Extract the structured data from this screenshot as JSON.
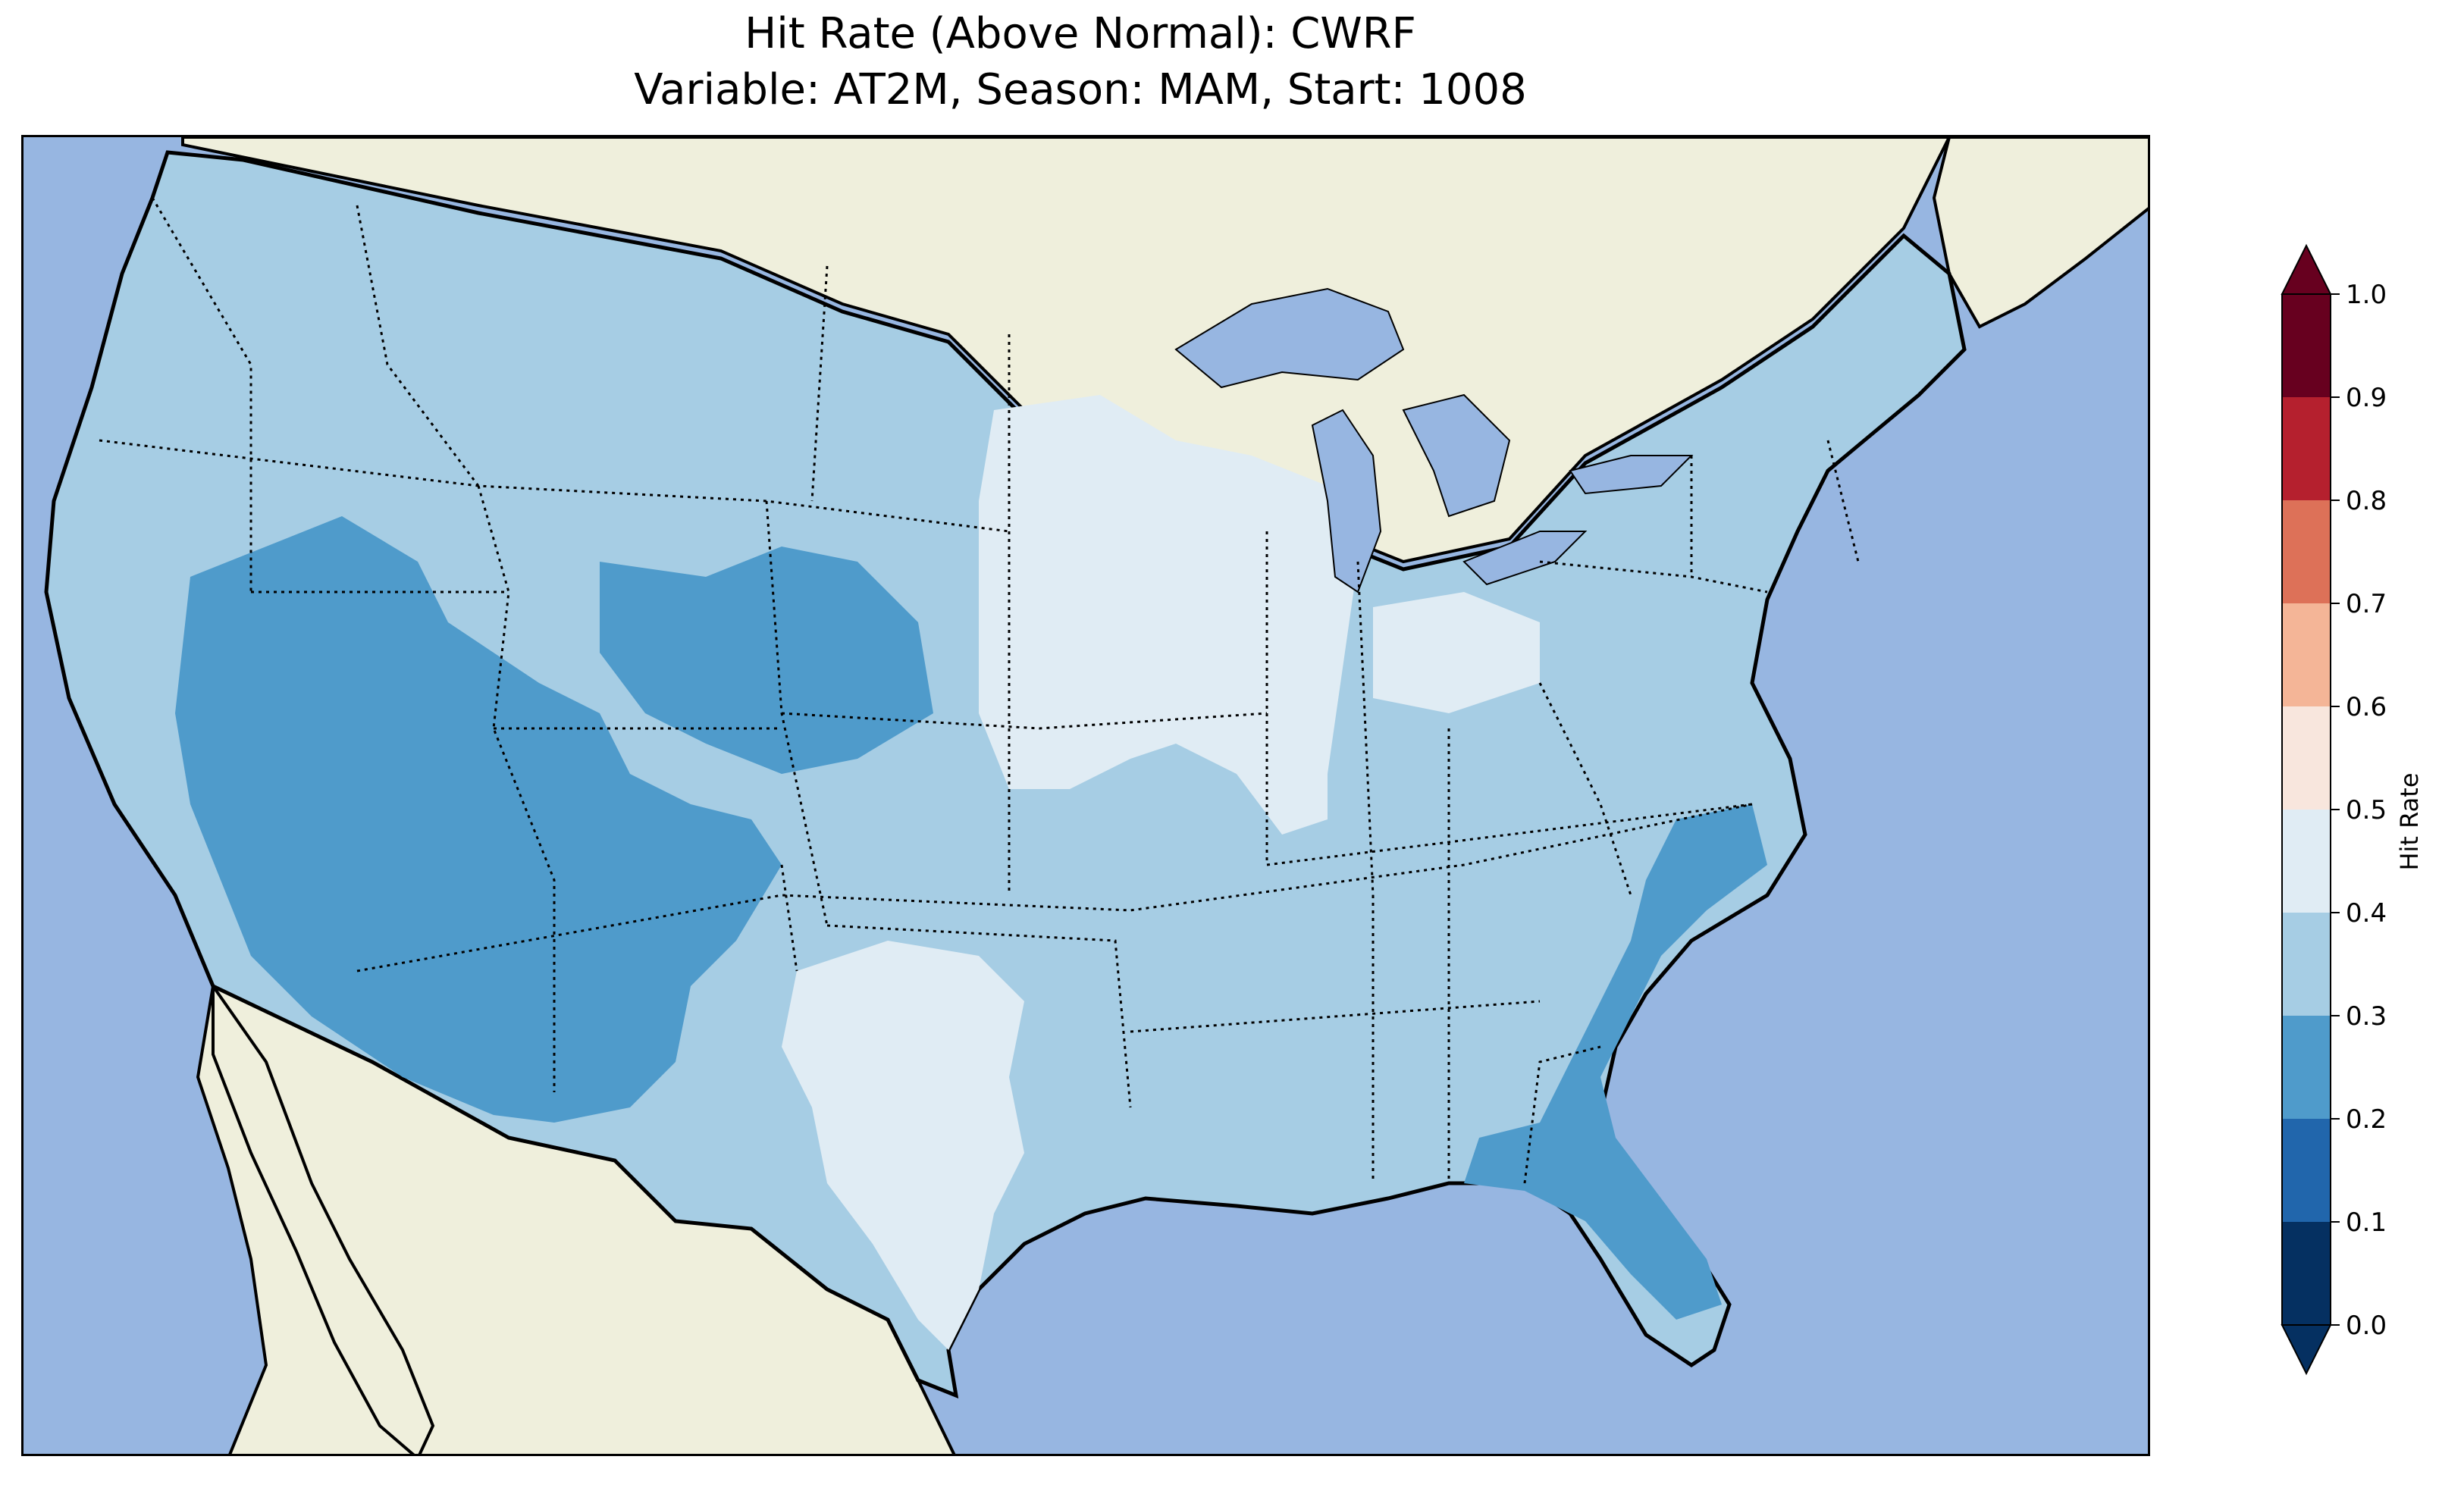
{
  "figure": {
    "title_line_1": "Hit Rate (Above Normal): CWRF",
    "title_line_2": "Variable: AT2M, Season: MAM, Start: 1008"
  },
  "colors": {
    "ocean": "#97b6e1",
    "land": "#efefdc",
    "lake": "#97b6e1",
    "state_border": "#000000"
  },
  "colorbar": {
    "label": "Hit Rate",
    "ticks": [
      "0.0",
      "0.1",
      "0.2",
      "0.3",
      "0.4",
      "0.5",
      "0.6",
      "0.7",
      "0.8",
      "0.9",
      "1.0"
    ],
    "levels": [
      {
        "range": [
          0.0,
          0.1
        ],
        "color": "#053061"
      },
      {
        "range": [
          0.1,
          0.2
        ],
        "color": "#2166ac"
      },
      {
        "range": [
          0.2,
          0.3
        ],
        "color": "#4f9bcb"
      },
      {
        "range": [
          0.3,
          0.4
        ],
        "color": "#a6cde4"
      },
      {
        "range": [
          0.4,
          0.5
        ],
        "color": "#e0ecf4"
      },
      {
        "range": [
          0.5,
          0.6
        ],
        "color": "#f8e6dd"
      },
      {
        "range": [
          0.6,
          0.7
        ],
        "color": "#f4b597"
      },
      {
        "range": [
          0.7,
          0.8
        ],
        "color": "#dd7158"
      },
      {
        "range": [
          0.8,
          0.9
        ],
        "color": "#b5202e"
      },
      {
        "range": [
          0.9,
          1.0
        ],
        "color": "#67001f"
      }
    ],
    "extend": "both"
  },
  "map_regions": [
    {
      "region": "most of CONUS (background)",
      "hit_rate_bin": "0.3-0.4"
    },
    {
      "region": "Great Basin / Nevada-Utah-Arizona-New Mexico",
      "hit_rate_bin": "0.2-0.3"
    },
    {
      "region": "Colorado / Wyoming",
      "hit_rate_bin": "0.2-0.3"
    },
    {
      "region": "Southeast coast / Georgia / Florida",
      "hit_rate_bin": "0.2-0.3"
    },
    {
      "region": "Upper Midwest / Wisconsin / Iowa / Illinois / Indiana",
      "hit_rate_bin": "0.4-0.5"
    },
    {
      "region": "Central Texas",
      "hit_rate_bin": "0.4-0.5"
    }
  ]
}
